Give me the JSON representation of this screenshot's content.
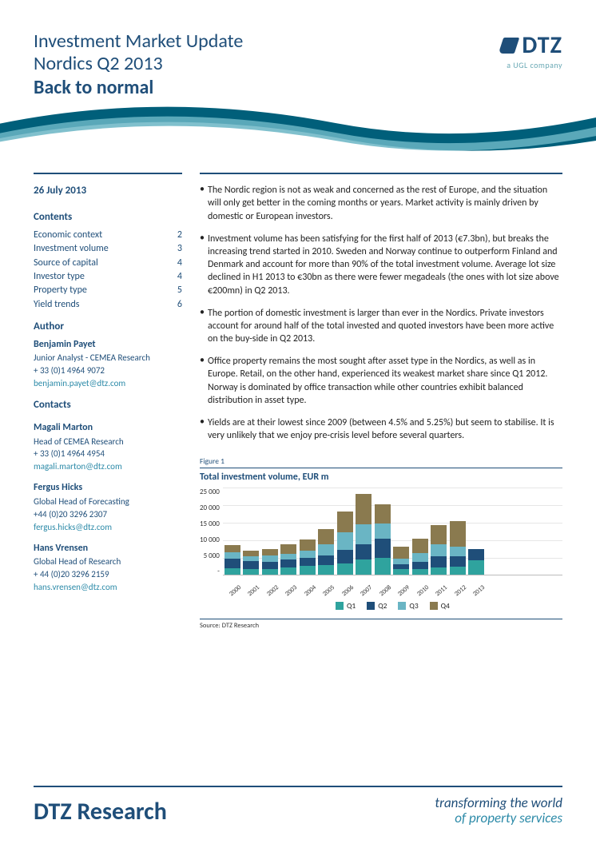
{
  "header": {
    "title_line1": "Investment Market Update",
    "title_line2": "Nordics Q2 2013",
    "subtitle": "Back to normal",
    "logo_text": "DTZ",
    "logo_sub": "a UGL company"
  },
  "colors": {
    "brand_navy": "#1f4e79",
    "brand_teal": "#2c8aa8",
    "swoosh_dark": "#005f7a",
    "swoosh_light": "#6ab5c4"
  },
  "sidebar": {
    "date": "26 July 2013",
    "contents_head": "Contents",
    "toc": [
      {
        "label": "Economic context",
        "page": "2"
      },
      {
        "label": "Investment volume",
        "page": "3"
      },
      {
        "label": "Source of capital",
        "page": "4"
      },
      {
        "label": "Investor type",
        "page": "4"
      },
      {
        "label": "Property type",
        "page": "5"
      },
      {
        "label": "Yield trends",
        "page": "6"
      }
    ],
    "author_head": "Author",
    "author": {
      "name": "Benjamin Payet",
      "role": "Junior Analyst - CEMEA Research",
      "phone": "+ 33 (0)1 4964 9072",
      "email": "benjamin.payet@dtz.com"
    },
    "contacts_head": "Contacts",
    "contacts": [
      {
        "name": "Magali Marton",
        "role": "Head of CEMEA Research",
        "phone": "+ 33 (0)1 4964 4954",
        "email": "magali.marton@dtz.com"
      },
      {
        "name": "Fergus Hicks",
        "role": "Global Head of Forecasting",
        "phone": "+44 (0)20 3296 2307",
        "email": "fergus.hicks@dtz.com"
      },
      {
        "name": "Hans Vrensen",
        "role": "Global Head of Research",
        "phone": "+ 44 (0)20 3296 2159",
        "email": "hans.vrensen@dtz.com"
      }
    ]
  },
  "bullets": [
    "The Nordic region is not as weak and concerned as the rest of Europe, and the situation will only get better in the coming months or years. Market activity is mainly driven by domestic or European investors.",
    "Investment volume has been satisfying for the first half of 2013 (€7.3bn), but breaks the increasing trend started in 2010. Sweden and Norway continue to outperform Finland and Denmark and account for more than 90% of the total investment volume. Average lot size declined in H1 2013 to €30bn as there were fewer megadeals (the ones with lot size above €200mn) in Q2 2013.",
    "The portion of domestic investment is larger than ever in the Nordics. Private investors account for around half of the total invested and quoted investors have been more active on the buy-side in Q2 2013.",
    "Office property remains the most sought after asset type in the Nordics, as well as in Europe. Retail, on the other hand, experienced its weakest market share since Q1 2012. Norway is dominated by office transaction while other countries exhibit balanced distribution in asset type.",
    "Yields are at their lowest since 2009 (between 4.5% and 5.25%) but seem to stabilise. It is very unlikely that we enjoy pre-crisis level before several quarters."
  ],
  "chart": {
    "fig_label": "Figure 1",
    "title": "Total investment volume, EUR m",
    "type": "stacked-bar",
    "y_ticks": [
      "25 000",
      "20 000",
      "15 000",
      "10 000",
      "5 000",
      "-"
    ],
    "ylim_max": 25000,
    "years": [
      "2000",
      "2001",
      "2002",
      "2003",
      "2004",
      "2005",
      "2006",
      "2007",
      "2008",
      "2009",
      "2010",
      "2011",
      "2012",
      "2013"
    ],
    "series": {
      "Q1": {
        "color": "#2fa39e",
        "values": [
          2000,
          1600,
          1600,
          2200,
          2500,
          2800,
          3200,
          4400,
          4800,
          1600,
          1600,
          2200,
          2400,
          4200
        ]
      },
      "Q2": {
        "color": "#1f4e79",
        "values": [
          2600,
          2300,
          2200,
          2200,
          2300,
          2800,
          4000,
          4300,
          5500,
          1400,
          2200,
          3200,
          3000,
          3100
        ]
      },
      "Q3": {
        "color": "#6ab5c4",
        "values": [
          1900,
          1400,
          1800,
          1700,
          2200,
          3200,
          5000,
          5700,
          4400,
          1700,
          2400,
          3400,
          2700,
          0
        ]
      },
      "Q4": {
        "color": "#8a7a4f",
        "values": [
          2100,
          1700,
          1700,
          2600,
          3100,
          4200,
          5800,
          8600,
          5300,
          3400,
          4100,
          5300,
          7200,
          0
        ]
      }
    },
    "legend": [
      "Q1",
      "Q2",
      "Q3",
      "Q4"
    ],
    "source": "Source: DTZ Research",
    "grid_color": "#e6e6e6",
    "axis_font_size": 9
  },
  "footer": {
    "left": "DTZ Research",
    "right_line1": "transforming the world",
    "right_line2": "of property services"
  }
}
